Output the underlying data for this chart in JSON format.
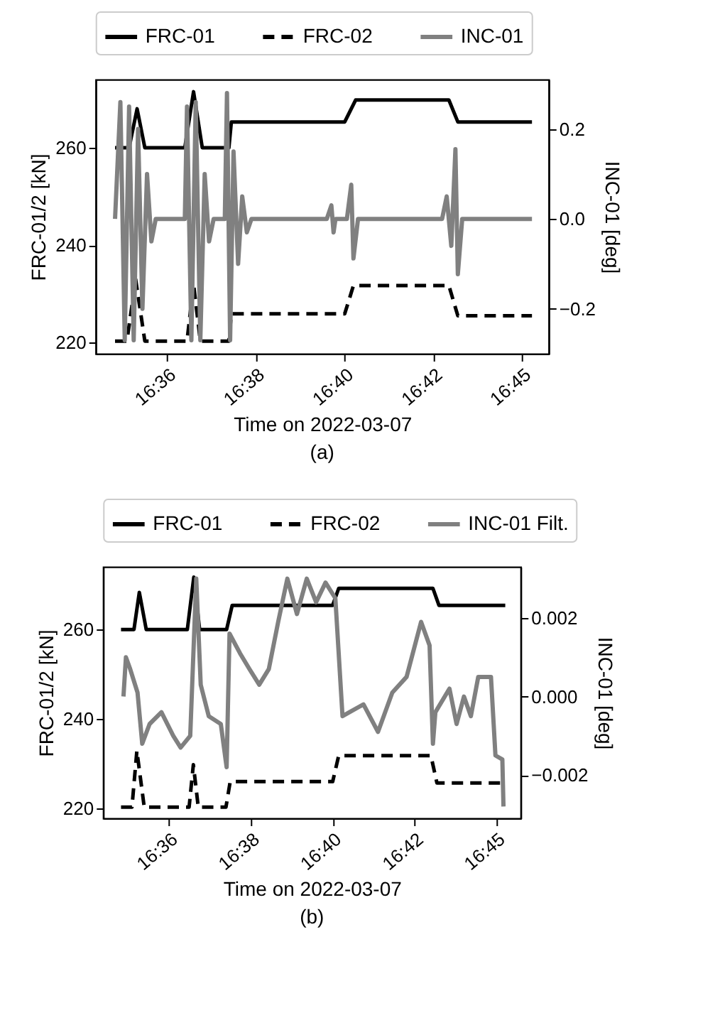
{
  "chart_data": [
    {
      "type": "line",
      "xlabel": "Time on 2022-03-07",
      "ylabel": "FRC-01/2 [kN]",
      "y2label": "INC-01 [deg]",
      "annotations": [
        "(a)"
      ],
      "xlim": [
        16.5672,
        16.7542
      ],
      "xticks": [
        {
          "value": 16.5967,
          "label": "16:36"
        },
        {
          "value": 16.6333,
          "label": "16:38"
        },
        {
          "value": 16.67,
          "label": "16:40"
        },
        {
          "value": 16.7067,
          "label": "16:42"
        },
        {
          "value": 16.7433,
          "label": "16:45"
        }
      ],
      "ylim": [
        217.7,
        274
      ],
      "yticks": [
        220,
        240,
        260
      ],
      "y2lim": [
        -0.3,
        0.31
      ],
      "y2ticks": [
        {
          "value": -0.2,
          "label": "−0.2"
        },
        {
          "value": 0,
          "label": "0.0"
        },
        {
          "value": 0.2,
          "label": "0.2"
        }
      ],
      "grid": false,
      "legend": "top",
      "series": [
        {
          "name": "FRC-01",
          "color": "#000000",
          "line_style": "solid",
          "x": [
            16.5752,
            16.581,
            16.5843,
            16.5875,
            16.604,
            16.6076,
            16.6112,
            16.6222,
            16.6232,
            16.67,
            16.6745,
            16.713,
            16.7167,
            16.7473
          ],
          "values": [
            260,
            260,
            268,
            260,
            260,
            271.5,
            260,
            260,
            265.3,
            265.3,
            269.8,
            269.8,
            265.3,
            265.3
          ]
        },
        {
          "name": "FRC-02",
          "color": "#000000",
          "line_style": "dashed",
          "x": [
            16.5752,
            16.5801,
            16.5837,
            16.5875,
            16.6049,
            16.6076,
            16.6104,
            16.6222,
            16.6232,
            16.67,
            16.6736,
            16.713,
            16.7167,
            16.7473
          ],
          "values": [
            220.3,
            220.3,
            233,
            220.3,
            220.3,
            232,
            220.3,
            220.3,
            225.9,
            225.9,
            231.7,
            231.7,
            225.5,
            225.5
          ]
        },
        {
          "name": "INC-01",
          "color": "#808080",
          "line_style": "solid",
          "axis": "y2",
          "x": [
            16.5752,
            16.5774,
            16.5792,
            16.581,
            16.5829,
            16.5847,
            16.5865,
            16.5884,
            16.5902,
            16.592,
            16.604,
            16.6049,
            16.6067,
            16.6085,
            16.6104,
            16.6122,
            16.614,
            16.6159,
            16.6205,
            16.6214,
            16.6227,
            16.6241,
            16.626,
            16.6277,
            16.6296,
            16.6315,
            16.6626,
            16.6645,
            16.6654,
            16.6662,
            16.6709,
            16.6727,
            16.6736,
            16.6755,
            16.7102,
            16.7121,
            16.714,
            16.7157,
            16.7167,
            16.7185,
            16.7473
          ],
          "values": [
            0,
            0.26,
            -0.27,
            0.25,
            -0.27,
            0.2,
            -0.2,
            0.1,
            -0.05,
            0,
            0,
            0.25,
            -0.27,
            0.26,
            -0.27,
            0.1,
            -0.05,
            0,
            0,
            0.28,
            -0.27,
            0.15,
            -0.1,
            0.05,
            -0.03,
            0,
            0,
            0.03,
            -0.03,
            0,
            0,
            0.076,
            -0.088,
            0,
            0,
            0.05,
            -0.06,
            0.155,
            -0.123,
            0,
            0
          ]
        }
      ]
    },
    {
      "type": "line",
      "xlabel": "Time on 2022-03-07",
      "ylabel": "FRC-01/2 [kN]",
      "y2label": "INC-01 [deg]",
      "annotations": [
        "(b)"
      ],
      "xlim": [
        16.5672,
        16.7542
      ],
      "xticks": [
        {
          "value": 16.5967,
          "label": "16:36"
        },
        {
          "value": 16.6333,
          "label": "16:38"
        },
        {
          "value": 16.67,
          "label": "16:40"
        },
        {
          "value": 16.7067,
          "label": "16:42"
        },
        {
          "value": 16.7433,
          "label": "16:45"
        }
      ],
      "ylim": [
        217.8,
        274
      ],
      "yticks": [
        220,
        240,
        260
      ],
      "y2lim": [
        -0.0031,
        0.0033
      ],
      "y2ticks": [
        {
          "value": -0.002,
          "label": "−0.002"
        },
        {
          "value": 0,
          "label": "0.000"
        },
        {
          "value": 0.002,
          "label": "0.002"
        }
      ],
      "grid": false,
      "legend": "top",
      "series": [
        {
          "name": "FRC-01",
          "color": "#000000",
          "line_style": "solid",
          "x": [
            16.5752,
            16.581,
            16.5834,
            16.5865,
            16.6049,
            16.6078,
            16.6104,
            16.6225,
            16.625,
            16.67,
            16.6727,
            16.7149,
            16.7176,
            16.7473
          ],
          "values": [
            260,
            260,
            268.3,
            260,
            260,
            271.7,
            260,
            260,
            265.4,
            265.4,
            269.2,
            269.2,
            265.4,
            265.4
          ]
        },
        {
          "name": "FRC-02",
          "color": "#000000",
          "line_style": "dashed",
          "x": [
            16.5752,
            16.5801,
            16.5823,
            16.5856,
            16.6057,
            16.6076,
            16.6098,
            16.6222,
            16.6241,
            16.67,
            16.6727,
            16.714,
            16.7167,
            16.7473
          ],
          "values": [
            220.3,
            220.3,
            232.9,
            220.3,
            220.3,
            229.8,
            220.3,
            220.3,
            226,
            226,
            231.8,
            231.8,
            225.7,
            225.7
          ]
        },
        {
          "name": "INC-01 Filt.",
          "color": "#808080",
          "line_style": "solid",
          "axis": "y2",
          "x": [
            16.5763,
            16.5774,
            16.5793,
            16.5826,
            16.5847,
            16.588,
            16.5933,
            16.5986,
            16.6019,
            16.6062,
            16.6089,
            16.6109,
            16.6145,
            16.6199,
            16.6225,
            16.6238,
            16.6285,
            16.6327,
            16.6371,
            16.6414,
            16.6456,
            16.6497,
            16.654,
            16.6584,
            16.6626,
            16.6668,
            16.6712,
            16.6744,
            16.6775,
            16.6838,
            16.6903,
            16.6967,
            16.7031,
            16.7096,
            16.7134,
            16.7149,
            16.716,
            16.7223,
            16.7255,
            16.7288,
            16.7319,
            16.7352,
            16.7396,
            16.7409,
            16.7429,
            16.746,
            16.7465
          ],
          "values": [
            0,
            0.001,
            0.0007,
            0.0001,
            -0.0012,
            -0.0007,
            -0.0004,
            -0.001,
            -0.0013,
            -0.001,
            0.003,
            0.0003,
            -0.0005,
            -0.0007,
            -0.0018,
            0.0016,
            0.0011,
            0.0007,
            0.0003,
            0.0007,
            0.0019,
            0.003,
            0.0021,
            0.003,
            0.0024,
            0.0029,
            0.0025,
            -0.0005,
            -0.0004,
            -0.0002,
            -0.0009,
            0.0001,
            0.0005,
            0.0019,
            0.0013,
            -0.0012,
            -0.0004,
            0.0002,
            -0.0007,
            0,
            -0.0005,
            0.0005,
            0.0005,
            0.0005,
            -0.0015,
            -0.0016,
            -0.0028
          ]
        }
      ]
    }
  ]
}
